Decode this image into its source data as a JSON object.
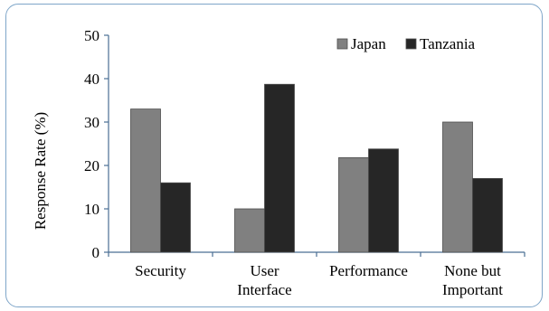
{
  "chart_data": {
    "type": "bar",
    "categories": [
      [
        "Security"
      ],
      [
        "User",
        "Interface"
      ],
      [
        "Performance"
      ],
      [
        "None but",
        "Important"
      ]
    ],
    "series": [
      {
        "name": "Japan",
        "values": [
          33,
          10,
          21.8,
          30
        ],
        "color": "#808080"
      },
      {
        "name": "Tanzania",
        "values": [
          16,
          38.7,
          23.8,
          17
        ],
        "color": "#262626"
      }
    ],
    "ylabel": "Response Rate (%)",
    "ylim": [
      0,
      50
    ],
    "yticks": [
      0,
      10,
      20,
      30,
      40,
      50
    ],
    "grid": false,
    "legend_position": "top-right"
  }
}
